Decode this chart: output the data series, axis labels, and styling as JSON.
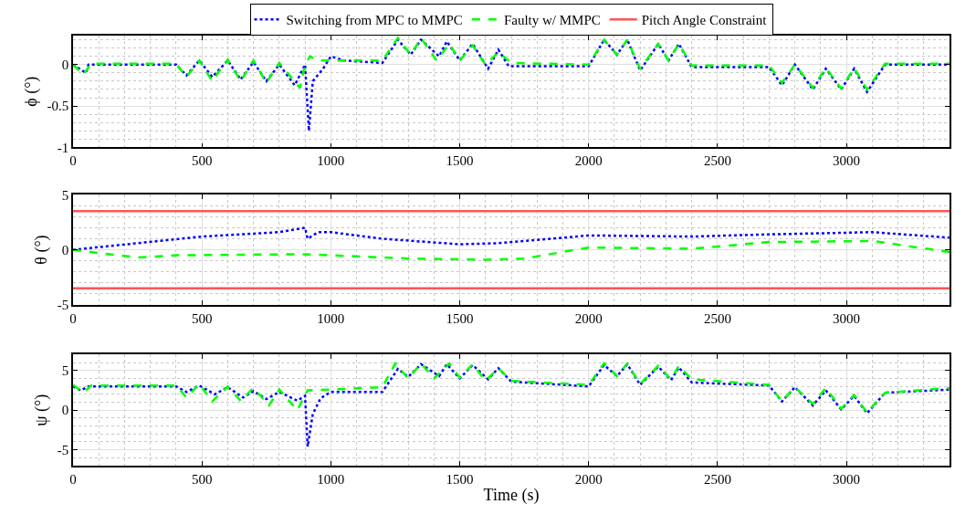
{
  "chart_data": [
    {
      "type": "line",
      "ylabel": "ϕ (°)",
      "xlim": [
        0,
        3400
      ],
      "xticks": [
        0,
        500,
        1000,
        1500,
        2000,
        2500,
        3000
      ],
      "ylim": [
        -1,
        0.35
      ],
      "yticks": [
        -1,
        -0.5,
        0
      ],
      "grid": true,
      "legend": "top",
      "series": [
        {
          "name": "Switching from MPC to MMPC",
          "color": "#0000ff",
          "line_style": "dotted",
          "x": [
            0,
            50,
            60,
            400,
            440,
            490,
            540,
            600,
            650,
            700,
            750,
            800,
            860,
            900,
            915,
            930,
            970,
            1000,
            1050,
            1200,
            1260,
            1310,
            1350,
            1420,
            1450,
            1500,
            1550,
            1610,
            1650,
            1690,
            2000,
            2060,
            2110,
            2150,
            2200,
            2270,
            2310,
            2350,
            2400,
            2700,
            2750,
            2800,
            2870,
            2920,
            2980,
            3030,
            3080,
            3150,
            3400
          ],
          "values": [
            0,
            -0.1,
            0,
            0,
            -0.13,
            0.05,
            -0.15,
            0.05,
            -0.18,
            0.03,
            -0.2,
            0.0,
            -0.25,
            0,
            -0.8,
            -0.2,
            -0.05,
            0.1,
            0.05,
            0.02,
            0.3,
            0.12,
            0.3,
            0.1,
            0.28,
            0.05,
            0.25,
            -0.05,
            0.18,
            -0.02,
            -0.02,
            0.3,
            0.12,
            0.3,
            -0.07,
            0.25,
            0.05,
            0.25,
            -0.03,
            -0.03,
            -0.25,
            0,
            -0.3,
            -0.05,
            -0.3,
            -0.05,
            -0.33,
            0,
            0
          ]
        },
        {
          "name": "Faulty w/ MMPC",
          "color": "#00ff00",
          "line_style": "dashed",
          "x": [
            0,
            40,
            70,
            400,
            440,
            490,
            540,
            600,
            650,
            700,
            750,
            800,
            880,
            900,
            920,
            950,
            1000,
            1200,
            1260,
            1310,
            1350,
            1410,
            1460,
            1500,
            1550,
            1600,
            1650,
            1700,
            2000,
            2060,
            2110,
            2150,
            2200,
            2270,
            2310,
            2350,
            2400,
            2700,
            2750,
            2800,
            2870,
            2920,
            2980,
            3030,
            3080,
            3150,
            3400
          ],
          "values": [
            0,
            -0.12,
            0.01,
            0.01,
            -0.15,
            0.05,
            -0.2,
            0.06,
            -0.2,
            0.05,
            -0.22,
            0.02,
            -0.28,
            0,
            0.1,
            0.05,
            0.05,
            0.05,
            0.32,
            0.12,
            0.32,
            0.05,
            0.25,
            0.05,
            0.23,
            0,
            0.15,
            0.02,
            0,
            0.3,
            0.12,
            0.3,
            -0.05,
            0.25,
            0.05,
            0.25,
            -0.01,
            -0.01,
            -0.22,
            0,
            -0.28,
            -0.04,
            -0.29,
            -0.04,
            -0.3,
            0.01,
            0.01
          ]
        }
      ]
    },
    {
      "type": "line",
      "ylabel": "θ (°)",
      "xlim": [
        0,
        3400
      ],
      "xticks": [
        0,
        500,
        1000,
        1500,
        2000,
        2500,
        3000
      ],
      "ylim": [
        -5,
        5
      ],
      "yticks": [
        -5,
        0,
        5
      ],
      "grid": true,
      "legend": "top",
      "series": [
        {
          "name": "Switching from MPC to MMPC",
          "color": "#0000ff",
          "line_style": "dotted",
          "x": [
            0,
            500,
            800,
            900,
            910,
            950,
            1000,
            1200,
            1500,
            1650,
            2000,
            2400,
            2700,
            3100,
            3400
          ],
          "values": [
            0,
            1.2,
            1.6,
            2.0,
            1.0,
            1.6,
            1.6,
            1.0,
            0.5,
            0.6,
            1.3,
            1.2,
            1.4,
            1.6,
            1.1
          ]
        },
        {
          "name": "Faulty w/ MMPC",
          "color": "#00ff00",
          "line_style": "dashed",
          "x": [
            0,
            100,
            250,
            400,
            900,
            1300,
            1600,
            1750,
            2000,
            2400,
            2700,
            3100,
            3400
          ],
          "values": [
            0,
            -0.3,
            -0.7,
            -0.5,
            -0.4,
            -0.8,
            -0.9,
            -0.8,
            0.2,
            0.1,
            0.7,
            0.8,
            -0.2
          ]
        }
      ],
      "ref_lines": [
        {
          "axis": "y",
          "value": 3.5,
          "label": "Pitch Angle Constraint",
          "color": "#ff5555"
        },
        {
          "axis": "y",
          "value": -3.5,
          "color": "#ff5555"
        }
      ]
    },
    {
      "type": "line",
      "ylabel": "ψ (°)",
      "xlabel": "Time (s)",
      "xlim": [
        0,
        3400
      ],
      "xticks": [
        0,
        500,
        1000,
        1500,
        2000,
        2500,
        3000
      ],
      "ylim": [
        -7,
        7
      ],
      "yticks": [
        -5,
        0,
        5
      ],
      "grid": true,
      "legend": "top",
      "series": [
        {
          "name": "Switching from MPC to MMPC",
          "color": "#0000ff",
          "line_style": "dotted",
          "x": [
            0,
            30,
            60,
            400,
            440,
            490,
            550,
            600,
            660,
            700,
            750,
            800,
            870,
            900,
            910,
            930,
            960,
            1000,
            1200,
            1260,
            1300,
            1350,
            1420,
            1450,
            1500,
            1550,
            1610,
            1650,
            1700,
            2000,
            2060,
            2110,
            2150,
            2200,
            2270,
            2320,
            2350,
            2400,
            2700,
            2750,
            2800,
            2870,
            2920,
            2980,
            3030,
            3080,
            3150,
            3400
          ],
          "values": [
            3,
            2.5,
            3,
            3,
            2.3,
            3.1,
            2,
            2.9,
            1.6,
            2.4,
            1.4,
            2.3,
            1.2,
            1.8,
            -4.6,
            -0.5,
            1.5,
            2.3,
            2.3,
            5.2,
            4.2,
            5.8,
            4.3,
            5.8,
            4,
            5.7,
            3.9,
            5.3,
            3.6,
            3.0,
            5.7,
            4.3,
            5.8,
            3.2,
            5.5,
            3.8,
            5.4,
            3.5,
            3.1,
            1.1,
            2.9,
            0.6,
            2.5,
            0.1,
            1.8,
            -0.4,
            2.2,
            2.6
          ]
        },
        {
          "name": "Faulty w/ MMPC",
          "color": "#00ff00",
          "line_style": "dashed",
          "x": [
            0,
            40,
            70,
            400,
            440,
            490,
            540,
            600,
            650,
            700,
            760,
            800,
            870,
            910,
            1000,
            1200,
            1250,
            1300,
            1350,
            1400,
            1460,
            1500,
            1550,
            1600,
            1650,
            1700,
            2000,
            2060,
            2110,
            2150,
            2200,
            2270,
            2320,
            2350,
            2400,
            2700,
            2750,
            2800,
            2870,
            2920,
            2980,
            3030,
            3080,
            3150,
            3400
          ],
          "values": [
            3.2,
            2.2,
            3.1,
            3.1,
            1.6,
            3.3,
            1.1,
            3.0,
            1.2,
            2.8,
            0.6,
            2.6,
            0,
            2.5,
            2.6,
            2.9,
            5.9,
            4.0,
            5.9,
            4.0,
            5.9,
            4.1,
            5.8,
            3.7,
            5.3,
            3.7,
            3.2,
            5.9,
            4.3,
            5.9,
            3.3,
            5.6,
            3.9,
            5.6,
            3.9,
            3.2,
            1.1,
            2.9,
            0.8,
            2.8,
            0.2,
            1.9,
            -0.3,
            2.2,
            2.8
          ]
        }
      ]
    }
  ]
}
